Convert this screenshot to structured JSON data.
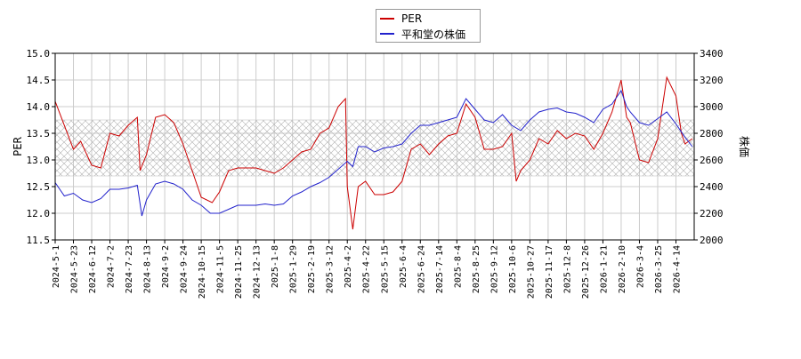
{
  "chart_data": {
    "type": "line",
    "ylabel_left": "PER",
    "ylabel_right": "株価",
    "ylim_left": [
      11.5,
      15.0
    ],
    "ylim_right": [
      2000,
      3400
    ],
    "yticks_left": [
      "11.5",
      "12.0",
      "12.5",
      "13.0",
      "13.5",
      "14.0",
      "14.5",
      "15.0"
    ],
    "yticks_right": [
      "2000",
      "2200",
      "2400",
      "2600",
      "2800",
      "3000",
      "3200",
      "3400"
    ],
    "xticks": [
      "2024-5-1",
      "2024-5-23",
      "2024-6-12",
      "2024-7-2",
      "2024-7-23",
      "2024-8-13",
      "2024-9-2",
      "2024-9-24",
      "2024-10-15",
      "2024-11-5",
      "2024-11-25",
      "2024-12-13",
      "2025-1-8",
      "2025-1-29",
      "2025-2-19",
      "2025-3-12",
      "2025-4-2",
      "2025-4-22",
      "2025-5-15",
      "2025-6-4",
      "2025-6-24",
      "2025-7-14",
      "2025-8-4",
      "2025-8-25",
      "2025-9-12",
      "2025-10-6",
      "2025-10-27",
      "2025-11-17",
      "2025-12-8",
      "2025-12-26",
      "2026-1-21",
      "2026-2-10",
      "2026-3-4",
      "2026-3-25",
      "2026-4-14"
    ],
    "grid": true,
    "legend_position": "top-center",
    "band": {
      "axis": "right",
      "from": 2480,
      "to": 2900
    },
    "series": [
      {
        "name": "PER",
        "axis": "left",
        "color": "#cc0000",
        "points": [
          [
            0,
            14.1
          ],
          [
            1,
            13.2
          ],
          [
            1.4,
            13.35
          ],
          [
            2,
            12.9
          ],
          [
            2.5,
            12.85
          ],
          [
            3,
            13.5
          ],
          [
            3.5,
            13.45
          ],
          [
            4,
            13.65
          ],
          [
            4.5,
            13.8
          ],
          [
            4.65,
            12.8
          ],
          [
            5,
            13.1
          ],
          [
            5.5,
            13.8
          ],
          [
            6,
            13.85
          ],
          [
            6.5,
            13.7
          ],
          [
            7,
            13.3
          ],
          [
            7.5,
            12.8
          ],
          [
            8,
            12.3
          ],
          [
            8.6,
            12.2
          ],
          [
            9,
            12.4
          ],
          [
            9.5,
            12.8
          ],
          [
            10,
            12.85
          ],
          [
            10.5,
            12.85
          ],
          [
            11,
            12.85
          ],
          [
            11.5,
            12.8
          ],
          [
            12,
            12.75
          ],
          [
            12.5,
            12.85
          ],
          [
            13,
            13.0
          ],
          [
            13.5,
            13.15
          ],
          [
            14,
            13.2
          ],
          [
            14.5,
            13.5
          ],
          [
            15,
            13.6
          ],
          [
            15.5,
            14.0
          ],
          [
            15.9,
            14.15
          ],
          [
            16,
            12.5
          ],
          [
            16.3,
            11.7
          ],
          [
            16.6,
            12.5
          ],
          [
            17,
            12.6
          ],
          [
            17.5,
            12.35
          ],
          [
            18,
            12.35
          ],
          [
            18.5,
            12.4
          ],
          [
            19,
            12.6
          ],
          [
            19.5,
            13.2
          ],
          [
            20,
            13.3
          ],
          [
            20.5,
            13.1
          ],
          [
            21,
            13.3
          ],
          [
            21.5,
            13.45
          ],
          [
            22,
            13.5
          ],
          [
            22.5,
            14.05
          ],
          [
            23,
            13.8
          ],
          [
            23.5,
            13.2
          ],
          [
            24,
            13.2
          ],
          [
            24.5,
            13.25
          ],
          [
            25,
            13.5
          ],
          [
            25.25,
            12.6
          ],
          [
            25.5,
            12.8
          ],
          [
            26,
            13.0
          ],
          [
            26.5,
            13.4
          ],
          [
            27,
            13.3
          ],
          [
            27.5,
            13.55
          ],
          [
            28,
            13.4
          ],
          [
            28.5,
            13.5
          ],
          [
            29,
            13.45
          ],
          [
            29.5,
            13.2
          ],
          [
            30,
            13.5
          ],
          [
            30.5,
            13.9
          ],
          [
            31,
            14.5
          ],
          [
            31.3,
            13.8
          ],
          [
            31.5,
            13.7
          ],
          [
            32,
            13.0
          ],
          [
            32.5,
            12.95
          ],
          [
            33,
            13.4
          ],
          [
            33.5,
            14.55
          ],
          [
            34,
            14.2
          ],
          [
            34.3,
            13.5
          ],
          [
            34.5,
            13.3
          ],
          [
            34.9,
            13.4
          ]
        ]
      },
      {
        "name": "平和堂の株価",
        "axis": "right",
        "color": "#2222cc",
        "points": [
          [
            0,
            2430
          ],
          [
            0.5,
            2330
          ],
          [
            1,
            2350
          ],
          [
            1.5,
            2300
          ],
          [
            2,
            2280
          ],
          [
            2.5,
            2310
          ],
          [
            3,
            2380
          ],
          [
            3.5,
            2380
          ],
          [
            4,
            2390
          ],
          [
            4.5,
            2410
          ],
          [
            4.75,
            2180
          ],
          [
            5,
            2300
          ],
          [
            5.5,
            2420
          ],
          [
            6,
            2440
          ],
          [
            6.5,
            2420
          ],
          [
            7,
            2380
          ],
          [
            7.5,
            2300
          ],
          [
            8,
            2260
          ],
          [
            8.5,
            2200
          ],
          [
            9,
            2200
          ],
          [
            9.5,
            2230
          ],
          [
            10,
            2260
          ],
          [
            10.5,
            2260
          ],
          [
            11,
            2260
          ],
          [
            11.5,
            2270
          ],
          [
            12,
            2260
          ],
          [
            12.5,
            2270
          ],
          [
            13,
            2330
          ],
          [
            13.5,
            2360
          ],
          [
            14,
            2400
          ],
          [
            14.5,
            2430
          ],
          [
            15,
            2470
          ],
          [
            15.5,
            2530
          ],
          [
            16,
            2590
          ],
          [
            16.3,
            2550
          ],
          [
            16.6,
            2700
          ],
          [
            17,
            2700
          ],
          [
            17.5,
            2660
          ],
          [
            18,
            2690
          ],
          [
            18.5,
            2700
          ],
          [
            19,
            2720
          ],
          [
            19.5,
            2800
          ],
          [
            20,
            2860
          ],
          [
            20.5,
            2860
          ],
          [
            21,
            2880
          ],
          [
            21.5,
            2900
          ],
          [
            22,
            2920
          ],
          [
            22.5,
            3060
          ],
          [
            23,
            2980
          ],
          [
            23.5,
            2900
          ],
          [
            24,
            2880
          ],
          [
            24.5,
            2940
          ],
          [
            25,
            2860
          ],
          [
            25.5,
            2820
          ],
          [
            26,
            2900
          ],
          [
            26.5,
            2960
          ],
          [
            27,
            2980
          ],
          [
            27.5,
            2990
          ],
          [
            28,
            2960
          ],
          [
            28.5,
            2950
          ],
          [
            29,
            2920
          ],
          [
            29.5,
            2880
          ],
          [
            30,
            2980
          ],
          [
            30.5,
            3020
          ],
          [
            31,
            3120
          ],
          [
            31.3,
            3000
          ],
          [
            31.5,
            2960
          ],
          [
            32,
            2880
          ],
          [
            32.5,
            2860
          ],
          [
            33,
            2910
          ],
          [
            33.5,
            2960
          ],
          [
            34,
            2870
          ],
          [
            34.5,
            2770
          ],
          [
            34.9,
            2700
          ]
        ]
      }
    ]
  }
}
